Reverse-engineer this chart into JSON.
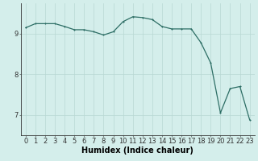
{
  "x": [
    0,
    1,
    2,
    3,
    4,
    5,
    6,
    7,
    8,
    9,
    10,
    11,
    12,
    13,
    14,
    15,
    16,
    17,
    18,
    19,
    20,
    21,
    22,
    23
  ],
  "y": [
    9.15,
    9.25,
    9.25,
    9.25,
    9.18,
    9.1,
    9.1,
    9.05,
    8.97,
    9.05,
    9.3,
    9.42,
    9.4,
    9.35,
    9.18,
    9.12,
    9.12,
    9.12,
    8.78,
    8.28,
    7.05,
    7.65,
    7.7,
    6.88
  ],
  "bg_color": "#d4eeeb",
  "line_color": "#2d6e65",
  "marker_color": "#2d6e65",
  "grid_color": "#b8d8d4",
  "axis_color": "#333333",
  "xlabel": "Humidex (Indice chaleur)",
  "xlabel_fontsize": 7,
  "tick_fontsize": 6,
  "yticks": [
    7,
    8,
    9
  ],
  "ylim": [
    6.5,
    9.75
  ],
  "xlim": [
    -0.5,
    23.5
  ],
  "marker_size": 2.0,
  "line_width": 0.9
}
